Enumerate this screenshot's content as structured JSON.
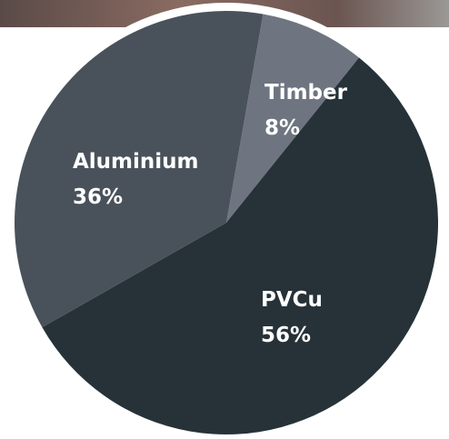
{
  "chart_data": {
    "type": "pie",
    "categories": [
      "Timber",
      "PVCu",
      "Aluminium"
    ],
    "values": [
      8,
      56,
      36
    ],
    "value_labels": [
      "8%",
      "56%",
      "36%"
    ],
    "colors": [
      "#6e7580",
      "#263238",
      "#49525b"
    ]
  }
}
